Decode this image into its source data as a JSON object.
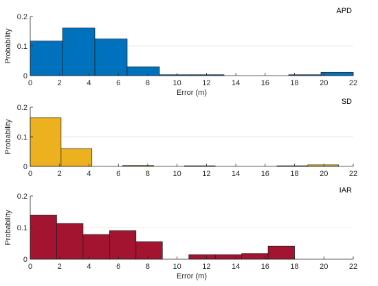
{
  "chart_data": [
    {
      "type": "bar",
      "title": "APD",
      "xlabel": "Error (m)",
      "ylabel": "Probability",
      "xlim": [
        0,
        22
      ],
      "ylim": [
        0,
        0.2
      ],
      "xticks": [
        "0",
        "2",
        "4",
        "6",
        "8",
        "10",
        "12",
        "14",
        "16",
        "18",
        "20",
        "22"
      ],
      "yticks": [
        "0",
        "0.1",
        "0.2"
      ],
      "color": "#0072BD",
      "grid": true,
      "bins": [
        {
          "x0": 0.0,
          "x1": 2.2,
          "value": 0.117
        },
        {
          "x0": 2.2,
          "x1": 4.4,
          "value": 0.161
        },
        {
          "x0": 4.4,
          "x1": 6.6,
          "value": 0.124
        },
        {
          "x0": 6.6,
          "x1": 8.8,
          "value": 0.03
        },
        {
          "x0": 8.8,
          "x1": 11.0,
          "value": 0.003
        },
        {
          "x0": 11.0,
          "x1": 13.2,
          "value": 0.003
        },
        {
          "x0": 17.6,
          "x1": 19.8,
          "value": 0.003
        },
        {
          "x0": 19.8,
          "x1": 22.0,
          "value": 0.011
        }
      ]
    },
    {
      "type": "bar",
      "title": "SD",
      "xlabel": "",
      "ylabel": "Probability",
      "xlim": [
        0,
        22
      ],
      "ylim": [
        0,
        0.2
      ],
      "xticks": [
        "0",
        "2",
        "4",
        "6",
        "8",
        "10",
        "12",
        "14",
        "16",
        "18",
        "20",
        "22"
      ],
      "yticks": [
        "0",
        "0.1",
        "0.2"
      ],
      "color": "#EDB120",
      "grid": true,
      "bins": [
        {
          "x0": 0.0,
          "x1": 2.1,
          "value": 0.165
        },
        {
          "x0": 2.1,
          "x1": 4.2,
          "value": 0.06
        },
        {
          "x0": 6.3,
          "x1": 8.4,
          "value": 0.003
        },
        {
          "x0": 10.5,
          "x1": 12.6,
          "value": 0.002
        },
        {
          "x0": 16.8,
          "x1": 18.9,
          "value": 0.002
        },
        {
          "x0": 18.9,
          "x1": 21.0,
          "value": 0.005
        }
      ]
    },
    {
      "type": "bar",
      "title": "IAR",
      "xlabel": "Error (m)",
      "ylabel": "Probability",
      "xlim": [
        0,
        22
      ],
      "ylim": [
        0,
        0.2
      ],
      "xticks": [
        "0",
        "2",
        "4",
        "6",
        "8",
        "10",
        "12",
        "14",
        "16",
        "18",
        "20",
        "22"
      ],
      "yticks": [
        "0",
        "0.1",
        "0.2"
      ],
      "color": "#A2142F",
      "grid": true,
      "bins": [
        {
          "x0": 0.0,
          "x1": 1.8,
          "value": 0.139
        },
        {
          "x0": 1.8,
          "x1": 3.6,
          "value": 0.113
        },
        {
          "x0": 3.6,
          "x1": 5.4,
          "value": 0.078
        },
        {
          "x0": 5.4,
          "x1": 7.2,
          "value": 0.09
        },
        {
          "x0": 7.2,
          "x1": 9.0,
          "value": 0.055
        },
        {
          "x0": 10.8,
          "x1": 12.6,
          "value": 0.014
        },
        {
          "x0": 12.6,
          "x1": 14.4,
          "value": 0.014
        },
        {
          "x0": 14.4,
          "x1": 16.2,
          "value": 0.018
        },
        {
          "x0": 16.2,
          "x1": 18.0,
          "value": 0.041
        }
      ]
    }
  ]
}
